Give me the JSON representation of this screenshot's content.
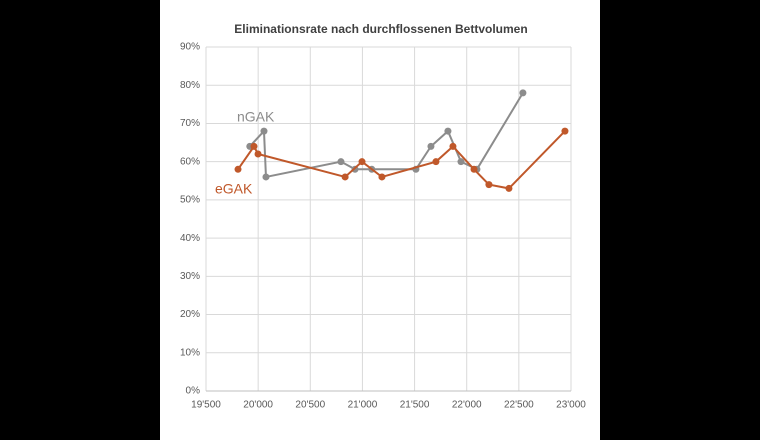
{
  "chart_data": {
    "type": "line",
    "title": "Eliminationsrate nach durchflossenen Bettvolumen",
    "series": [
      {
        "name": "nGAK",
        "color": "#8c8c8c",
        "x": [
          19920,
          20056,
          20075,
          20794,
          20929,
          21090,
          21513,
          21657,
          21820,
          21945,
          22098,
          22539
        ],
        "values": [
          64,
          68,
          56,
          60,
          58,
          58,
          58,
          64,
          68,
          60,
          58,
          78
        ]
      },
      {
        "name": "eGAK",
        "color": "#c0582a",
        "x": [
          19807,
          19960,
          19999,
          20834,
          20996,
          21187,
          21705,
          21868,
          22070,
          22213,
          22405,
          22942
        ],
        "values": [
          58,
          64,
          62,
          56,
          60,
          56,
          60,
          64,
          58,
          54,
          53,
          68
        ]
      }
    ],
    "xlim": [
      19500,
      23000
    ],
    "xticks": [
      {
        "value": 19500,
        "label": "19'500"
      },
      {
        "value": 20000,
        "label": "20'000"
      },
      {
        "value": 20500,
        "label": "20'500"
      },
      {
        "value": 21000,
        "label": "21'000"
      },
      {
        "value": 21500,
        "label": "21'500"
      },
      {
        "value": 22000,
        "label": "22'000"
      },
      {
        "value": 22500,
        "label": "22'500"
      },
      {
        "value": 23000,
        "label": "23'000"
      }
    ],
    "ylim": [
      0,
      90
    ],
    "yticks": [
      {
        "value": 0,
        "label": "0%"
      },
      {
        "value": 10,
        "label": "10%"
      },
      {
        "value": 20,
        "label": "20%"
      },
      {
        "value": 30,
        "label": "30%"
      },
      {
        "value": 40,
        "label": "40%"
      },
      {
        "value": 50,
        "label": "50%"
      },
      {
        "value": 60,
        "label": "60%"
      },
      {
        "value": 70,
        "label": "70%"
      },
      {
        "value": 80,
        "label": "80%"
      },
      {
        "value": 90,
        "label": "90%"
      }
    ],
    "grid": true
  }
}
